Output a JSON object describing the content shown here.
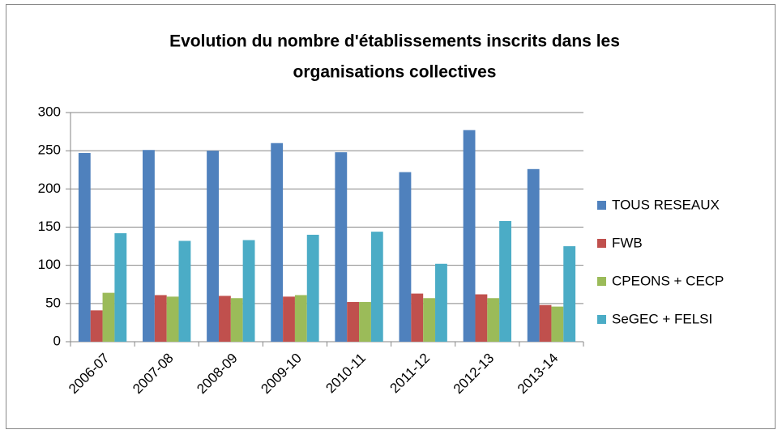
{
  "chart_data": {
    "type": "bar",
    "title": [
      "Evolution du nombre d'établissements inscrits dans les",
      "organisations collectives"
    ],
    "categories": [
      "2006-07",
      "2007-08",
      "2008-09",
      "2009-10",
      "2010-11",
      "2011-12",
      "2012-13",
      "2013-14"
    ],
    "series": [
      {
        "name": "TOUS RESEAUX",
        "color": "#4f81bd",
        "values": [
          247,
          251,
          250,
          260,
          248,
          222,
          277,
          226
        ]
      },
      {
        "name": "FWB",
        "color": "#c0504d",
        "values": [
          41,
          61,
          60,
          59,
          52,
          63,
          62,
          48
        ]
      },
      {
        "name": "CPEONS + CECP",
        "color": "#9bbb59",
        "values": [
          64,
          59,
          57,
          61,
          52,
          57,
          57,
          46
        ]
      },
      {
        "name": "SeGEC + FELSI",
        "color": "#4bacc6",
        "values": [
          142,
          132,
          133,
          140,
          144,
          102,
          158,
          125
        ]
      }
    ],
    "ylim": [
      0,
      300
    ],
    "yticks": [
      0,
      50,
      100,
      150,
      200,
      250,
      300
    ],
    "grid": true,
    "legend": "right"
  }
}
